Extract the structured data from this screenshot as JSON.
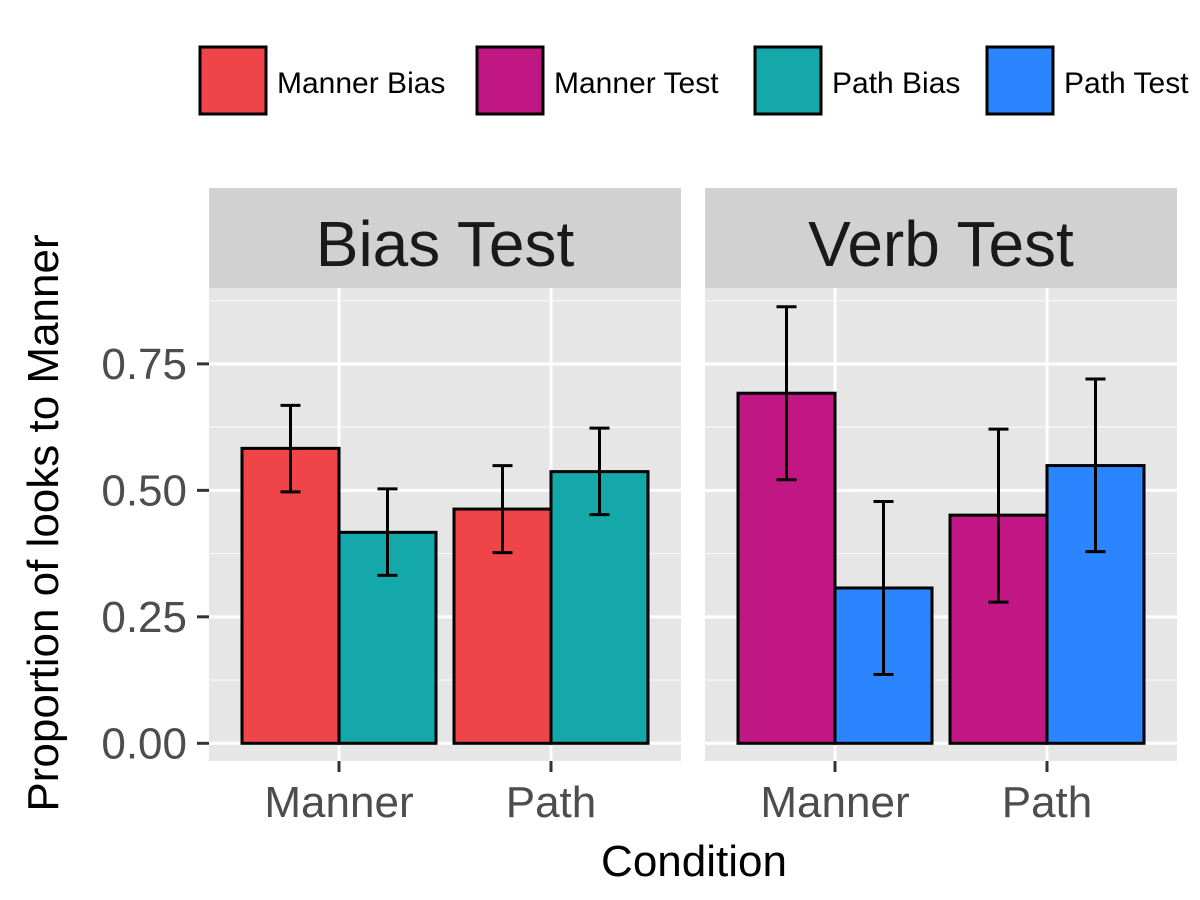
{
  "chart_data": {
    "type": "bar",
    "xlabel": "Condition",
    "ylabel": "Proportion of looks to Manner",
    "ylim": [
      -0.035,
      0.9
    ],
    "yticks": [
      "0.00",
      "0.25",
      "0.50",
      "0.75"
    ],
    "grid": true,
    "legend_position": "top",
    "legend": [
      {
        "label": "Manner Bias",
        "color": "#f04548"
      },
      {
        "label": "Manner Test",
        "color": "#c01784"
      },
      {
        "label": "Path Bias",
        "color": "#15a8ab"
      },
      {
        "label": "Path Test",
        "color": "#2b85ff"
      }
    ],
    "panels": [
      {
        "title": "Bias Test",
        "categories": [
          "Manner",
          "Path"
        ],
        "bars": [
          {
            "category": "Manner",
            "series": "Manner Bias",
            "value": 0.583,
            "err_low": 0.497,
            "err_high": 0.668
          },
          {
            "category": "Manner",
            "series": "Path Bias",
            "value": 0.417,
            "err_low": 0.332,
            "err_high": 0.503
          },
          {
            "category": "Path",
            "series": "Manner Bias",
            "value": 0.463,
            "err_low": 0.377,
            "err_high": 0.549
          },
          {
            "category": "Path",
            "series": "Path Bias",
            "value": 0.537,
            "err_low": 0.452,
            "err_high": 0.623
          }
        ]
      },
      {
        "title": "Verb Test",
        "categories": [
          "Manner",
          "Path"
        ],
        "bars": [
          {
            "category": "Manner",
            "series": "Manner Test",
            "value": 0.692,
            "err_low": 0.521,
            "err_high": 0.863
          },
          {
            "category": "Manner",
            "series": "Path Test",
            "value": 0.307,
            "err_low": 0.136,
            "err_high": 0.478
          },
          {
            "category": "Path",
            "series": "Manner Test",
            "value": 0.451,
            "err_low": 0.279,
            "err_high": 0.621
          },
          {
            "category": "Path",
            "series": "Path Test",
            "value": 0.549,
            "err_low": 0.379,
            "err_high": 0.72
          }
        ]
      }
    ]
  }
}
